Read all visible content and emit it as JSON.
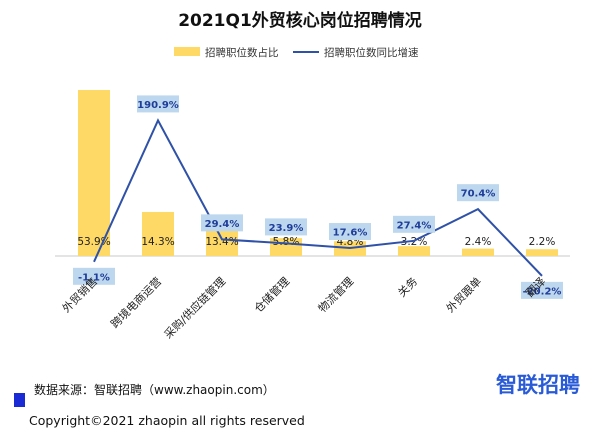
{
  "chart_data": {
    "type": "bar",
    "title": "2021Q1外贸核心岗位招聘情况",
    "categories": [
      "外贸销售",
      "跨境电商运营",
      "采购/供应链管理",
      "仓储管理",
      "物流管理",
      "关务",
      "外贸跟单",
      "翻译"
    ],
    "series": [
      {
        "name": "招聘职位数占比",
        "type": "bar",
        "values": [
          53.9,
          14.3,
          13.4,
          5.8,
          4.8,
          3.2,
          2.4,
          2.2
        ],
        "labels": [
          "53.9%",
          "14.3%",
          "13.4%",
          "5.8%",
          "4.8%",
          "3.2%",
          "2.4%",
          "2.2%"
        ],
        "color": "#ffd966"
      },
      {
        "name": "招聘职位数同比增速",
        "type": "line",
        "values": [
          -1.1,
          190.9,
          29.4,
          23.9,
          17.6,
          27.4,
          70.4,
          -20.2
        ],
        "labels": [
          "-1.1%",
          "190.9%",
          "29.4%",
          "23.9%",
          "17.6%",
          "27.4%",
          "70.4%",
          "-20.2%"
        ],
        "color": "#2f52a8"
      }
    ],
    "grid": false,
    "legend_position": "top"
  },
  "footer": {
    "source": "数据来源：智联招聘（www.zhaopin.com）",
    "copyright": "Copyright©2021 zhaopin all rights reserved",
    "brand": "智联招聘"
  }
}
